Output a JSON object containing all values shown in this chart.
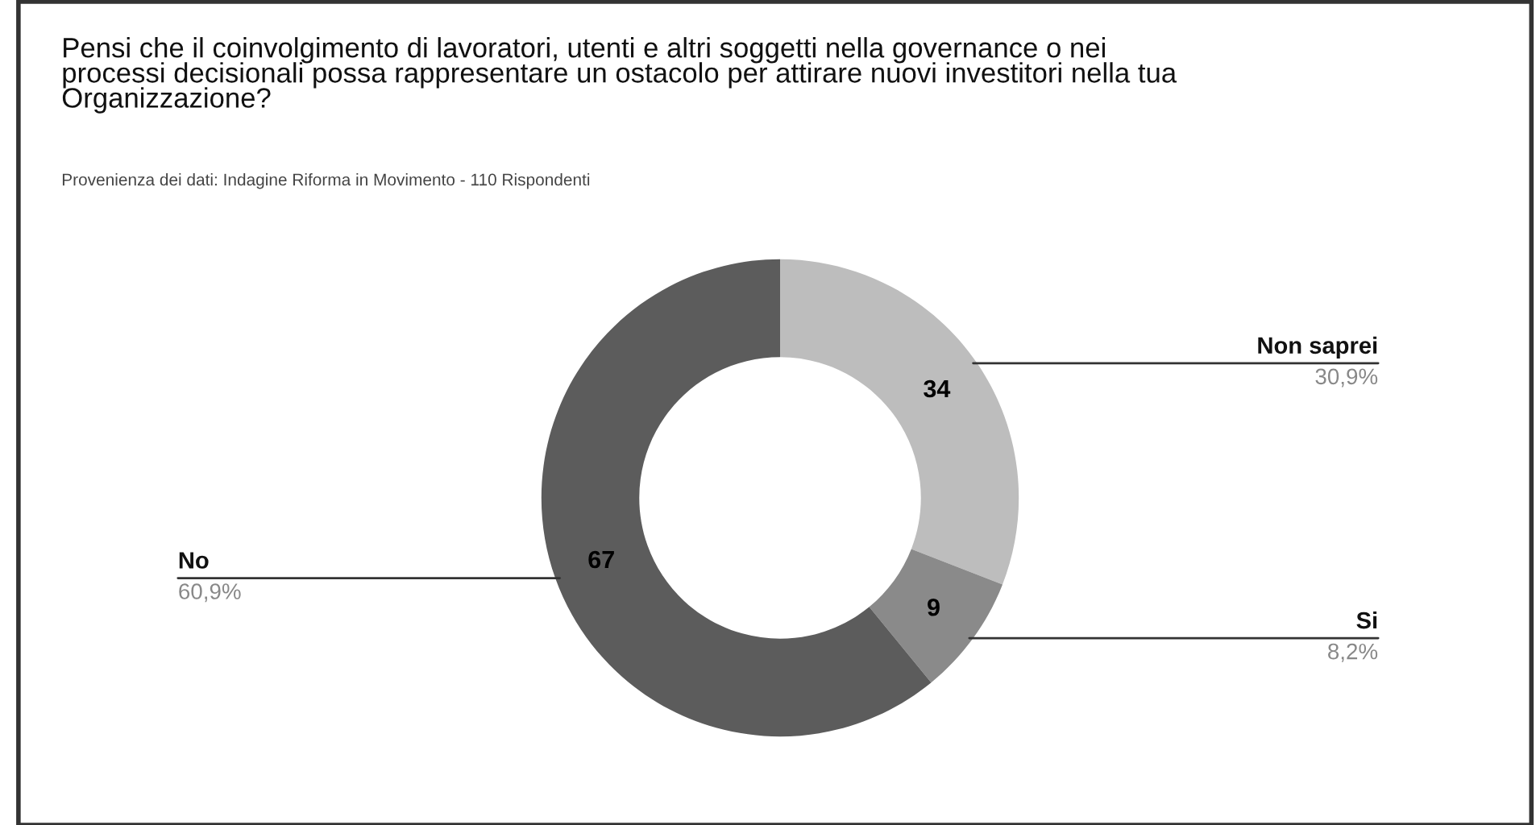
{
  "chart_data": {
    "type": "donut",
    "title": "Pensi che il coinvolgimento di lavoratori, utenti e altri soggetti nella governance o nei\nprocessi decisionali possa rappresentare un ostacolo per attirare nuovi investitori nella tua\nOrganizzazione?",
    "subtitle": "Provenienza dei dati: Indagine Riforma in Movimento - 110 Rispondenti",
    "categories": [
      "Non saprei",
      "Si",
      "No"
    ],
    "values": [
      34,
      9,
      67
    ],
    "colors": [
      "#bdbdbd",
      "#8a8a8a",
      "#5c5c5c"
    ],
    "value_labels": [
      "34",
      "9",
      "67"
    ],
    "annotations": [
      "30,9%",
      "8,2%",
      "60,9%"
    ],
    "legend": false
  }
}
